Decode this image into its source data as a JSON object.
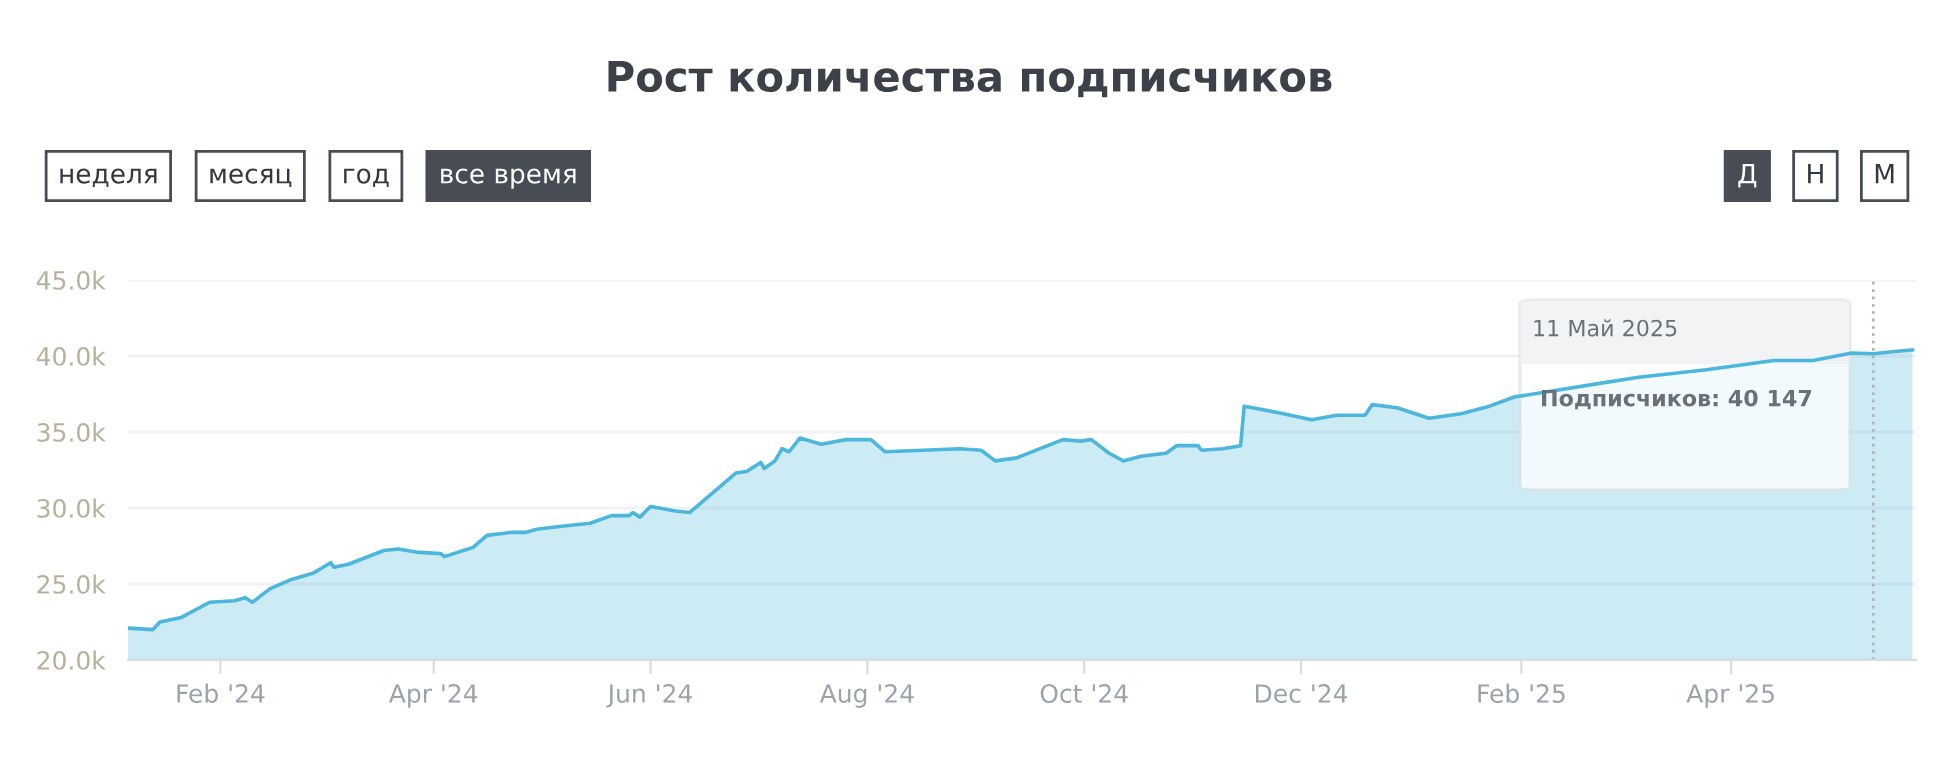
{
  "chart_data": {
    "type": "area",
    "title": "Рост количества подписчиков",
    "x": [
      "2024-01-06",
      "2024-01-13",
      "2024-01-15",
      "2024-01-21",
      "2024-01-29",
      "2024-02-05",
      "2024-02-08",
      "2024-02-10",
      "2024-02-15",
      "2024-02-21",
      "2024-02-27",
      "2024-03-03",
      "2024-03-04",
      "2024-03-08",
      "2024-03-18",
      "2024-03-22",
      "2024-03-27",
      "2024-04-03",
      "2024-04-04",
      "2024-04-12",
      "2024-04-16",
      "2024-04-23",
      "2024-04-27",
      "2024-04-30",
      "2024-05-07",
      "2024-05-15",
      "2024-05-21",
      "2024-05-26",
      "2024-05-27",
      "2024-05-29",
      "2024-06-01",
      "2024-06-08",
      "2024-06-12",
      "2024-06-17",
      "2024-06-25",
      "2024-06-28",
      "2024-07-02",
      "2024-07-03",
      "2024-07-06",
      "2024-07-08",
      "2024-07-10",
      "2024-07-13",
      "2024-07-19",
      "2024-07-26",
      "2024-08-02",
      "2024-08-06",
      "2024-08-27",
      "2024-09-02",
      "2024-09-06",
      "2024-09-12",
      "2024-09-25",
      "2024-09-30",
      "2024-10-03",
      "2024-10-08",
      "2024-10-12",
      "2024-10-17",
      "2024-10-24",
      "2024-10-27",
      "2024-11-02",
      "2024-11-03",
      "2024-11-09",
      "2024-11-14",
      "2024-11-15",
      "2024-11-24",
      "2024-12-04",
      "2024-12-11",
      "2024-12-19",
      "2024-12-21",
      "2024-12-28",
      "2025-01-06",
      "2025-01-15",
      "2025-01-23",
      "2025-01-30",
      "2025-02-23",
      "2025-03-06",
      "2025-03-25",
      "2025-04-13",
      "2025-04-24",
      "2025-05-05",
      "2025-05-11",
      "2025-05-17",
      "2025-05-22"
    ],
    "series": [
      {
        "color": "#4db6dc",
        "values": [
          22.1,
          22.0,
          22.5,
          22.8,
          23.8,
          23.9,
          24.1,
          23.8,
          24.7,
          25.3,
          25.7,
          26.4,
          26.1,
          26.3,
          27.2,
          27.3,
          27.1,
          27.0,
          26.8,
          27.4,
          28.2,
          28.4,
          28.4,
          28.6,
          28.8,
          29.0,
          29.5,
          29.5,
          29.7,
          29.4,
          30.1,
          29.8,
          29.7,
          30.7,
          32.3,
          32.4,
          33.0,
          32.6,
          33.1,
          33.9,
          33.7,
          34.6,
          34.2,
          34.5,
          34.5,
          33.7,
          33.9,
          33.8,
          33.1,
          33.3,
          34.5,
          34.4,
          34.5,
          33.6,
          33.1,
          33.4,
          33.6,
          34.1,
          34.1,
          33.8,
          33.9,
          34.1,
          36.7,
          36.3,
          35.8,
          36.1,
          36.1,
          36.8,
          36.6,
          35.9,
          36.2,
          36.7,
          37.3,
          38.2,
          38.6,
          39.1,
          39.7,
          39.7,
          40.2,
          40.147,
          40.3,
          40.4
        ]
      }
    ],
    "xlim": [
      "2024-01-06",
      "2025-05-23"
    ],
    "xticks": [
      {
        "value": "2024-02-01",
        "label": "Feb '24"
      },
      {
        "value": "2024-04-01",
        "label": "Apr '24"
      },
      {
        "value": "2024-06-01",
        "label": "Jun '24"
      },
      {
        "value": "2024-08-01",
        "label": "Aug '24"
      },
      {
        "value": "2024-10-01",
        "label": "Oct '24"
      },
      {
        "value": "2024-12-01",
        "label": "Dec '24"
      },
      {
        "value": "2025-02-01",
        "label": "Feb '25"
      },
      {
        "value": "2025-04-01",
        "label": "Apr '25"
      }
    ],
    "ylim": [
      20,
      45
    ],
    "yticks": [
      {
        "value": 20,
        "label": "20.0k"
      },
      {
        "value": 25,
        "label": "25.0k"
      },
      {
        "value": 30,
        "label": "30.0k"
      },
      {
        "value": 35,
        "label": "35.0k"
      },
      {
        "value": 40,
        "label": "40.0k"
      },
      {
        "value": 45,
        "label": "45.0k"
      }
    ],
    "grid": "y",
    "ref_lines": [
      {
        "axis": "x",
        "value": "2025-05-11",
        "color": "#b0b6bc",
        "line_style": "dotted"
      }
    ],
    "annotations": [
      "неделя",
      "месяц",
      "год",
      "все время",
      "Д",
      "Н",
      "М",
      "11 Май 2025",
      "Подписчиков: 40 147"
    ]
  }
}
